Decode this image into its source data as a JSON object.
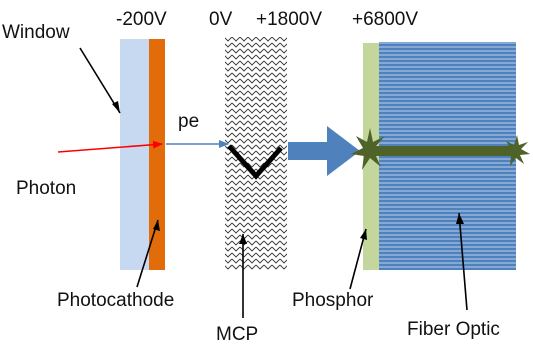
{
  "voltages": {
    "photocathode": "-200V",
    "mcp_in": "0V",
    "mcp_out": "+1800V",
    "phosphor": "+6800V"
  },
  "labels": {
    "window": "Window",
    "photon": "Photon",
    "pe": "pe",
    "photocathode": "Photocathode",
    "mcp": "MCP",
    "phosphor": "Phosphor",
    "fiber_optic": "Fiber Optic"
  },
  "colors": {
    "window": "#c6d9f1",
    "photocathode": "#e36c0a",
    "phosphor": "#c3d69b",
    "fiber_optic": "#4f81bd",
    "photon_ray": "#ff0000",
    "electron_path": "#4f81bd",
    "amplified_beam": "#4f81bd",
    "light_output": "#4f6228",
    "electron_cascade": "#000000"
  },
  "icons": {
    "photon_arrow": "arrow-right-icon",
    "electron_arrow": "arrow-right-icon",
    "scintillation_flash": "starburst-icon"
  }
}
